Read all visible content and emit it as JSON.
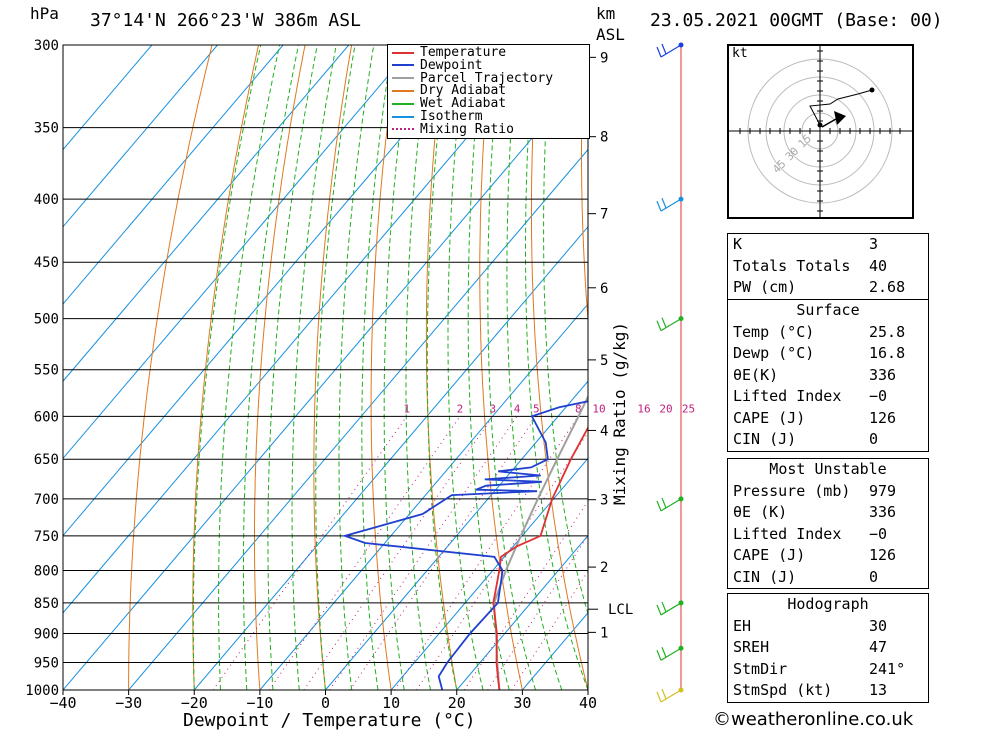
{
  "header": {
    "hpa_unit": "hPa",
    "location": "37°14'N 266°23'W 386m ASL",
    "km_unit": "km",
    "asl_unit": "ASL",
    "datetime": "23.05.2021 00GMT (Base: 00)"
  },
  "x_axis_label": "Dewpoint / Temperature (°C)",
  "mixing_axis_label": "Mixing Ratio (g/kg)",
  "legend": [
    {
      "label": "Temperature",
      "color": "#e03030"
    },
    {
      "label": "Dewpoint",
      "color": "#2040d0"
    },
    {
      "label": "Parcel Trajectory",
      "color": "#a0a0a0"
    },
    {
      "label": "Dry Adiabat",
      "color": "#e07820"
    },
    {
      "label": "Wet Adiabat",
      "color": "#20b020"
    },
    {
      "label": "Isotherm",
      "color": "#1890e0"
    },
    {
      "label": "Mixing Ratio",
      "color": "#c02080"
    }
  ],
  "colors": {
    "temperature": "#e03030",
    "dewpoint": "#2040d0",
    "parcel": "#a0a0a0",
    "dry_adiabat": "#e07820",
    "wet_adiabat": "#20b020",
    "isotherm": "#1890e0",
    "mixing_ratio": "#c02080"
  },
  "chart_data": {
    "type": "line",
    "title": "",
    "pressure_levels": [
      "300",
      "350",
      "400",
      "450",
      "500",
      "550",
      "600",
      "650",
      "700",
      "750",
      "800",
      "850",
      "900",
      "950",
      "1000"
    ],
    "temp_ticks": [
      "−40",
      "−30",
      "−20",
      "−10",
      "0",
      "10",
      "20",
      "30",
      "40"
    ],
    "km_ticks": [
      "9",
      "8",
      "7",
      "6",
      "5",
      "4",
      "3",
      "2",
      "1"
    ],
    "lcl_label": "LCL",
    "mixing_ratio_labels": [
      "1",
      "2",
      "3",
      "4",
      "5",
      "8",
      "10",
      "16",
      "20",
      "25"
    ],
    "xlim": [
      -40,
      40
    ],
    "plim": [
      1000,
      300
    ],
    "series": [
      {
        "name": "Temperature",
        "points": [
          [
            1000,
            26.5
          ],
          [
            975,
            24.5
          ],
          [
            950,
            22.5
          ],
          [
            900,
            18.8
          ],
          [
            850,
            14.3
          ],
          [
            800,
            11
          ],
          [
            780,
            9.5
          ],
          [
            765,
            10.5
          ],
          [
            750,
            12.8
          ],
          [
            700,
            9.8
          ],
          [
            650,
            7.5
          ],
          [
            600,
            5.5
          ],
          [
            550,
            3
          ],
          [
            500,
            0.7
          ],
          [
            470,
            -1.7
          ],
          [
            450,
            -2.5
          ],
          [
            400,
            -8
          ],
          [
            350,
            -13
          ],
          [
            320,
            -14.8
          ],
          [
            300,
            -15.5
          ]
        ]
      },
      {
        "name": "Dewpoint",
        "points": [
          [
            1000,
            17.8
          ],
          [
            975,
            15.5
          ],
          [
            950,
            15
          ],
          [
            900,
            14.7
          ],
          [
            850,
            15
          ],
          [
            800,
            11.5
          ],
          [
            780,
            8.5
          ],
          [
            760,
            -13
          ],
          [
            750,
            -17
          ],
          [
            720,
            -8
          ],
          [
            695,
            -6
          ],
          [
            690,
            6.5
          ],
          [
            688,
            -3
          ],
          [
            683,
            -2
          ],
          [
            678,
            6
          ],
          [
            675,
            -3
          ],
          [
            670,
            5
          ],
          [
            665,
            -2
          ],
          [
            660,
            2.5
          ],
          [
            650,
            4
          ],
          [
            630,
            1.5
          ],
          [
            600,
            -4
          ],
          [
            590,
            -1
          ],
          [
            580,
            4.5
          ],
          [
            560,
            8
          ],
          [
            545,
            10
          ],
          [
            530,
            5.5
          ],
          [
            520,
            8
          ],
          [
            505,
            5
          ],
          [
            480,
            -1
          ],
          [
            470,
            2
          ],
          [
            450,
            3
          ],
          [
            430,
            0
          ],
          [
            410,
            -1
          ],
          [
            380,
            -3
          ],
          [
            360,
            -4
          ],
          [
            345,
            -8
          ],
          [
            330,
            -10
          ],
          [
            315,
            -15
          ],
          [
            300,
            -12
          ]
        ]
      },
      {
        "name": "Parcel Trajectory",
        "points": [
          [
            1000,
            26.5
          ],
          [
            950,
            22.6
          ],
          [
            900,
            18.7
          ],
          [
            850,
            14.4
          ],
          [
            800,
            12
          ],
          [
            750,
            9.8
          ],
          [
            700,
            7.6
          ],
          [
            650,
            5.4
          ],
          [
            600,
            3.1
          ],
          [
            550,
            0.5
          ],
          [
            500,
            -2.2
          ],
          [
            450,
            -5.4
          ],
          [
            400,
            -9.2
          ],
          [
            350,
            -13.5
          ],
          [
            300,
            -18.5
          ]
        ]
      }
    ],
    "wind_barbs": [
      {
        "pressure": 300,
        "color": "#1a40e0"
      },
      {
        "pressure": 400,
        "color": "#1890e0"
      },
      {
        "pressure": 500,
        "color": "#20b020"
      },
      {
        "pressure": 700,
        "color": "#20b020"
      },
      {
        "pressure": 850,
        "color": "#20b020"
      },
      {
        "pressure": 925,
        "color": "#20b020"
      },
      {
        "pressure": 1000,
        "color": "#d0c020"
      }
    ]
  },
  "hodograph": {
    "unit": "kt",
    "rings": [
      "15",
      "30",
      "45"
    ]
  },
  "indices": [
    {
      "label": "K",
      "value": "3"
    },
    {
      "label": "Totals Totals",
      "value": "40"
    },
    {
      "label": "PW (cm)",
      "value": "2.68"
    }
  ],
  "surface": {
    "title": "Surface",
    "rows": [
      {
        "label": "Temp (°C)",
        "value": "25.8"
      },
      {
        "label": "Dewp (°C)",
        "value": "16.8"
      },
      {
        "label": "θE(K)",
        "value": "336"
      },
      {
        "label": "Lifted Index",
        "value": "−0"
      },
      {
        "label": "CAPE (J)",
        "value": "126"
      },
      {
        "label": "CIN (J)",
        "value": "0"
      }
    ]
  },
  "most_unstable": {
    "title": "Most Unstable",
    "rows": [
      {
        "label": "Pressure (mb)",
        "value": "979"
      },
      {
        "label": "θE (K)",
        "value": "336"
      },
      {
        "label": "Lifted Index",
        "value": "−0"
      },
      {
        "label": "CAPE (J)",
        "value": "126"
      },
      {
        "label": "CIN (J)",
        "value": "0"
      }
    ]
  },
  "hodograph_table": {
    "title": "Hodograph",
    "rows": [
      {
        "label": "EH",
        "value": "30"
      },
      {
        "label": "SREH",
        "value": "47"
      },
      {
        "label": "StmDir",
        "value": "241°"
      },
      {
        "label": "StmSpd (kt)",
        "value": "13"
      }
    ]
  },
  "copyright": "©weatheronline.co.uk"
}
